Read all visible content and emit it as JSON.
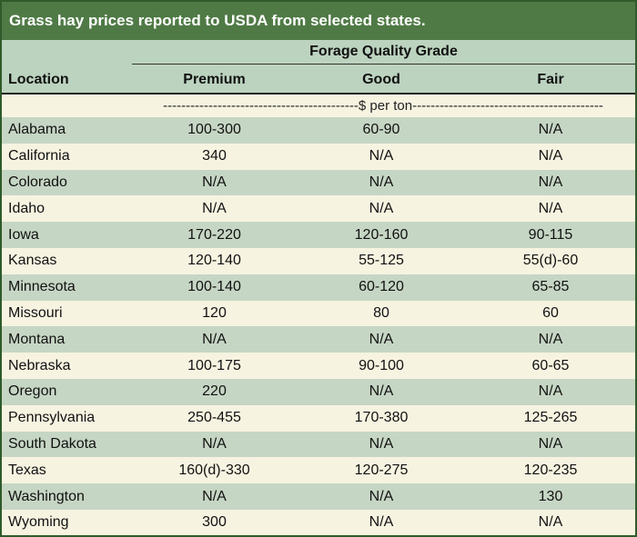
{
  "title": "Grass hay prices reported to USDA from selected states.",
  "header": {
    "group_label": "Forage Quality Grade",
    "location": "Location",
    "premium": "Premium",
    "good": "Good",
    "fair": "Fair"
  },
  "units": "-------------------------------------------$ per ton------------------------------------------",
  "rows": [
    {
      "location": "Alabama",
      "premium": "100-300",
      "good": "60-90",
      "fair": "N/A"
    },
    {
      "location": "California",
      "premium": "340",
      "good": "N/A",
      "fair": "N/A"
    },
    {
      "location": "Colorado",
      "premium": "N/A",
      "good": "N/A",
      "fair": "N/A"
    },
    {
      "location": "Idaho",
      "premium": "N/A",
      "good": "N/A",
      "fair": "N/A"
    },
    {
      "location": "Iowa",
      "premium": "170-220",
      "good": "120-160",
      "fair": "90-115"
    },
    {
      "location": "Kansas",
      "premium": "120-140",
      "good": "55-125",
      "fair": "55(d)-60"
    },
    {
      "location": "Minnesota",
      "premium": "100-140",
      "good": "60-120",
      "fair": "65-85"
    },
    {
      "location": "Missouri",
      "premium": "120",
      "good": "80",
      "fair": "60"
    },
    {
      "location": "Montana",
      "premium": "N/A",
      "good": "N/A",
      "fair": "N/A"
    },
    {
      "location": "Nebraska",
      "premium": "100-175",
      "good": "90-100",
      "fair": "60-65"
    },
    {
      "location": "Oregon",
      "premium": "220",
      "good": "N/A",
      "fair": "N/A"
    },
    {
      "location": "Pennsylvania",
      "premium": "250-455",
      "good": "170-380",
      "fair": "125-265"
    },
    {
      "location": "South Dakota",
      "premium": "N/A",
      "good": "N/A",
      "fair": "N/A"
    },
    {
      "location": "Texas",
      "premium": "160(d)-330",
      "good": "120-275",
      "fair": "120-235"
    },
    {
      "location": "Washington",
      "premium": "N/A",
      "good": "N/A",
      "fair": "130"
    },
    {
      "location": "Wyoming",
      "premium": "300",
      "good": "N/A",
      "fair": "N/A"
    }
  ]
}
